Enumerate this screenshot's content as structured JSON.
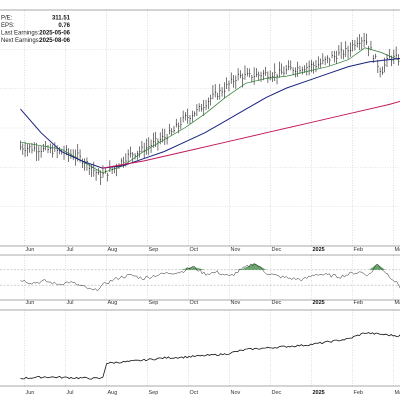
{
  "info": [
    {
      "key": "P/E:",
      "value": "311.51"
    },
    {
      "key": "EPS:",
      "value": "0.76"
    },
    {
      "key": "Last Earnings:",
      "value": "2025-05-06"
    },
    {
      "key": "Next Earnings:",
      "value": "2025-08-06"
    }
  ],
  "colors": {
    "price_bars": "#1a1a1a",
    "ma_short": "#2e7d32",
    "ma_mid": "#1a237e",
    "ma_long": "#c2185b",
    "indicator_fill": "#2e7d32",
    "grid": "#bdbdbd"
  },
  "chart_data": {
    "type": "line",
    "x_tick_labels": [
      {
        "label": "Jun",
        "month_index": 0
      },
      {
        "label": "Jul",
        "month_index": 1
      },
      {
        "label": "Aug",
        "month_index": 2
      },
      {
        "label": "Sep",
        "month_index": 3
      },
      {
        "label": "Oct",
        "month_index": 4
      },
      {
        "label": "Nov",
        "month_index": 5
      },
      {
        "label": "Dec",
        "month_index": 6
      },
      {
        "label": "2025",
        "month_index": 7,
        "bold": true
      },
      {
        "label": "Feb",
        "month_index": 8
      },
      {
        "label": "Mar",
        "month_index": 9
      }
    ],
    "grid": true,
    "panels": [
      {
        "name": "price",
        "kind": "ohlc",
        "ylim": [
          0,
          100
        ],
        "x": [
          0,
          0.5,
          1,
          1.4,
          1.7,
          1.9,
          2,
          2.3,
          2.6,
          3,
          3.3,
          3.7,
          4,
          4.3,
          4.6,
          5,
          5.3,
          5.6,
          6,
          6.3,
          6.6,
          7,
          7.3,
          7.6,
          8,
          8.2,
          8.4,
          8.6,
          8.8,
          9,
          9.3,
          9.7,
          10
        ],
        "close": [
          42,
          41,
          40,
          38,
          34,
          30,
          30,
          33,
          38,
          41,
          44,
          48,
          54,
          57,
          62,
          67,
          72,
          72,
          73,
          73,
          75,
          76,
          77,
          80,
          83,
          87,
          88,
          81,
          74,
          80,
          79,
          83,
          86
        ],
        "series": [
          {
            "id": "ma_short",
            "x": [
              0,
              1,
              1.7,
              2,
              2.5,
              3,
              3.5,
              4,
              4.5,
              5,
              5.5,
              6,
              6.5,
              7,
              7.5,
              8,
              8.4,
              8.8,
              9.2,
              9.6,
              10
            ],
            "values": [
              44,
              41,
              34,
              31,
              34,
              40,
              45,
              50,
              56,
              63,
              69,
              71,
              72,
              74,
              76,
              79,
              84,
              82,
              79,
              82,
              85
            ]
          },
          {
            "id": "ma_mid",
            "x": [
              0,
              0.5,
              1,
              1.5,
              2,
              2.5,
              3,
              3.5,
              4,
              4.5,
              5,
              5.5,
              6,
              6.5,
              7,
              7.5,
              8,
              8.5,
              9,
              9.5,
              10
            ],
            "values": [
              58,
              48,
              40,
              36,
              33,
              34,
              37,
              40,
              44,
              48,
              53,
              58,
              63,
              67,
              70,
              73,
              76,
              78,
              79,
              80,
              82
            ]
          },
          {
            "id": "ma_long",
            "x": [
              2,
              3,
              4,
              5,
              6,
              7,
              8,
              9,
              10
            ],
            "values": [
              33,
              36,
              40,
              44,
              48,
              52,
              56,
              60,
              65
            ]
          }
        ]
      },
      {
        "name": "oscillator",
        "kind": "line_with_fill",
        "ylim": [
          0,
          100
        ],
        "upper": 67,
        "lower": 33,
        "x": [
          0,
          0.3,
          0.6,
          0.9,
          1.2,
          1.5,
          1.8,
          2.1,
          2.4,
          2.7,
          3,
          3.3,
          3.6,
          3.9,
          4.2,
          4.5,
          4.8,
          5.1,
          5.4,
          5.7,
          6,
          6.3,
          6.6,
          6.9,
          7.2,
          7.5,
          7.8,
          8.1,
          8.3,
          8.5,
          8.7,
          8.9,
          9.1,
          9.3,
          9.5,
          9.7,
          10
        ],
        "values": [
          45,
          38,
          42,
          35,
          40,
          30,
          20,
          38,
          50,
          55,
          48,
          55,
          60,
          62,
          74,
          58,
          62,
          52,
          68,
          82,
          60,
          52,
          48,
          45,
          58,
          55,
          52,
          60,
          62,
          55,
          80,
          62,
          45,
          25,
          48,
          52,
          60
        ]
      },
      {
        "name": "lower",
        "kind": "line",
        "ylim": [
          0,
          100
        ],
        "x": [
          0,
          0.6,
          1.2,
          1.8,
          2,
          2.1,
          2.6,
          3,
          3.5,
          4,
          4.5,
          5,
          5.5,
          6,
          6.5,
          7,
          7.5,
          8,
          8.4,
          8.8,
          9.2,
          9.6,
          10
        ],
        "values": [
          10,
          12,
          11,
          10,
          10,
          30,
          32,
          34,
          37,
          38,
          40,
          42,
          48,
          50,
          52,
          54,
          58,
          62,
          70,
          68,
          66,
          72,
          78
        ]
      }
    ]
  }
}
